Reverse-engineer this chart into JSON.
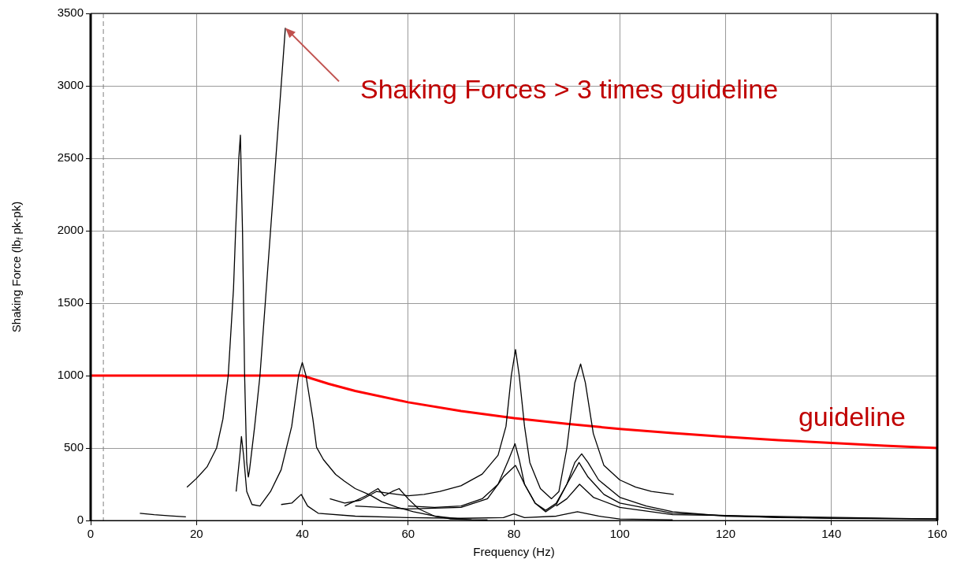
{
  "chart_data": {
    "type": "line",
    "xlabel": "Frequency (Hz)",
    "ylabel": "Shaking Force (lb$_{f}$ pk-pk)",
    "xlim": [
      0,
      160
    ],
    "xticks": [
      0,
      20,
      40,
      60,
      80,
      100,
      120,
      140,
      160
    ],
    "ylim": [
      0,
      3500
    ],
    "yticks": [
      0,
      500,
      1000,
      1500,
      2000,
      2500,
      3000,
      3500
    ],
    "grid": true,
    "legend": false,
    "marker": "none",
    "line_style": "solid",
    "ref_lines": [
      {
        "axis": "x",
        "value": 2.4,
        "color": "#808080",
        "line_style": "dashed"
      }
    ],
    "annotations": [
      {
        "text": "Shaking Forces > 3 times guideline",
        "x": 36.8,
        "y": 3400
      }
    ],
    "series": [
      {
        "color": "#000000",
        "x": [
          18.2,
          20,
          22,
          23.8,
          25,
          26,
          27,
          27.4,
          28,
          28.3,
          28.7,
          29.1,
          29.5,
          29.8,
          30,
          31,
          32,
          33,
          34,
          35,
          36,
          36.8
        ],
        "values": [
          230,
          290,
          370,
          500,
          700,
          1000,
          1600,
          2000,
          2500,
          2660,
          2000,
          1000,
          400,
          300,
          340,
          650,
          1000,
          1500,
          2000,
          2500,
          3000,
          3400
        ]
      },
      {
        "color": "#000000",
        "x": [
          27.5,
          28.2,
          28.5,
          28.9,
          29.5,
          30.5,
          32,
          34,
          36,
          38,
          39.3,
          40,
          40.7,
          42,
          42.7,
          44,
          46.3,
          48,
          50,
          52.8,
          55,
          58,
          61,
          65,
          67.9,
          72,
          75
        ],
        "values": [
          200,
          450,
          580,
          450,
          200,
          110,
          100,
          200,
          350,
          650,
          1000,
          1090,
          1000,
          700,
          505,
          420,
          318,
          270,
          220,
          176,
          130,
          90,
          60,
          30,
          11,
          6,
          5
        ]
      },
      {
        "color": "#000000",
        "x": [
          45.2,
          48,
          51,
          54,
          56,
          58,
          60,
          63,
          66,
          70,
          74,
          77,
          78.5,
          79.5,
          80.3,
          81,
          82,
          83,
          85,
          87.1,
          88.5,
          90,
          91.5,
          92.6,
          93.5,
          95,
          97,
          100,
          103,
          106,
          110.2
        ],
        "values": [
          150,
          120,
          140,
          200,
          190,
          180,
          170,
          180,
          200,
          240,
          320,
          450,
          650,
          1000,
          1180,
          1000,
          650,
          400,
          220,
          150,
          200,
          500,
          950,
          1080,
          950,
          600,
          380,
          280,
          230,
          200,
          180
        ]
      },
      {
        "color": "#000000",
        "x": [
          60,
          65,
          70,
          74,
          77,
          79,
          80.2,
          81,
          82,
          84,
          86,
          88,
          90,
          91.5,
          92.8,
          94,
          96,
          100,
          105,
          110,
          120,
          140,
          160
        ],
        "values": [
          100,
          90,
          100,
          150,
          250,
          420,
          530,
          420,
          250,
          120,
          70,
          120,
          250,
          400,
          460,
          400,
          280,
          160,
          100,
          60,
          30,
          15,
          10
        ]
      },
      {
        "color": "#000000",
        "x": [
          50,
          60,
          70,
          75,
          78,
          80.3,
          82,
          84,
          86,
          88,
          90,
          92.3,
          94,
          97,
          100,
          110,
          130,
          160
        ],
        "values": [
          100,
          80,
          90,
          150,
          300,
          380,
          250,
          120,
          60,
          110,
          250,
          400,
          300,
          180,
          120,
          50,
          20,
          10
        ]
      },
      {
        "color": "#000000",
        "x": [
          88,
          90,
          92.4,
          95,
          100,
          110,
          160
        ],
        "values": [
          100,
          150,
          250,
          160,
          90,
          40,
          10
        ]
      },
      {
        "color": "#000000",
        "x": [
          9.3,
          12,
          15,
          18
        ],
        "values": [
          50,
          40,
          32,
          25
        ]
      },
      {
        "color": "#000000",
        "x": [
          36,
          38,
          39.8,
          41,
          43,
          50,
          60,
          70,
          78,
          80,
          82,
          88,
          92,
          96,
          100,
          110
        ],
        "values": [
          110,
          120,
          180,
          100,
          50,
          30,
          20,
          15,
          20,
          45,
          20,
          30,
          60,
          30,
          10,
          5
        ]
      },
      {
        "color": "#000000",
        "x": [
          48,
          52,
          54.3,
          55.5,
          57,
          58.3,
          60,
          62,
          65,
          70
        ],
        "values": [
          100,
          170,
          220,
          170,
          200,
          220,
          150,
          80,
          30,
          10
        ]
      },
      {
        "name": "guideline",
        "color": "#ff0000",
        "x": [
          0,
          40,
          45,
          50,
          60,
          70,
          80,
          90,
          100,
          110,
          120,
          130,
          140,
          150,
          160
        ],
        "values": [
          1000,
          1000,
          943,
          894,
          816,
          756,
          707,
          667,
          632,
          603,
          577,
          555,
          535,
          516,
          500
        ]
      }
    ]
  }
}
